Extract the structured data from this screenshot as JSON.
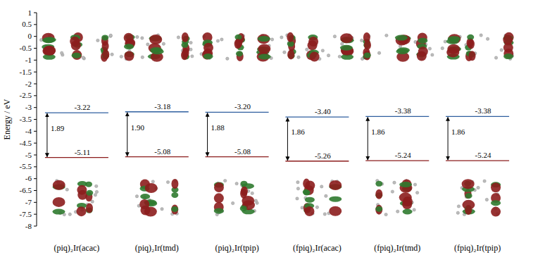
{
  "chart_data": {
    "type": "energy_levels",
    "y_label": "Energy / eV",
    "categories": [
      "(piq)₂Ir(acac)",
      "(piq)₂Ir(tmd)",
      "(piq)₂Ir(tpip)",
      "(fpiq)₂Ir(acac)",
      "(fpiq)₂Ir(tmd)",
      "(fpiq)₂Ir(tpip)"
    ],
    "lumo": {
      "color": "#2f5f9f",
      "values": [
        -3.22,
        -3.18,
        -3.2,
        -3.4,
        -3.38,
        -3.38
      ],
      "value_labels": [
        "-3.22",
        "-3.18",
        "-3.20",
        "-3.40",
        "-3.38",
        "-3.38"
      ]
    },
    "homo": {
      "color": "#8b1c1c",
      "values": [
        -5.11,
        -5.08,
        -5.08,
        -5.26,
        -5.24,
        -5.24
      ],
      "value_labels": [
        "-5.11",
        "-5.08",
        "-5.08",
        "-5.26",
        "-5.24",
        "-5.24"
      ]
    },
    "gap": {
      "values": [
        1.89,
        1.9,
        1.88,
        1.86,
        1.86,
        1.86
      ],
      "value_labels": [
        "1.89",
        "1.90",
        "1.88",
        "1.86",
        "1.86",
        "1.86"
      ]
    },
    "ylim": [
      -8,
      1
    ],
    "yticks": [
      -8,
      -7.5,
      -7,
      -6.5,
      -6,
      -5.5,
      -5,
      -4.5,
      -4,
      -3.5,
      -3,
      -2.5,
      -2,
      -1.5,
      -1,
      -0.5,
      0,
      0.5,
      1
    ]
  }
}
